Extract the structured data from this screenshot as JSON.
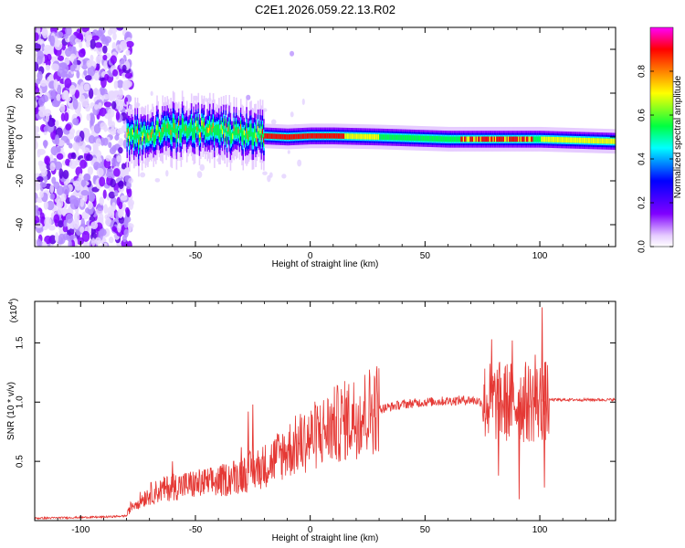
{
  "title": "C2E1.2026.059.22.13.R02",
  "colors": {
    "axis": "#000000",
    "snr_line": "#e53935",
    "colormap": [
      "#ffffff",
      "#d8c4ff",
      "#8000ff",
      "#0000ff",
      "#00ffff",
      "#00ff40",
      "#ffff00",
      "#ff8000",
      "#ff0000",
      "#ff00ff"
    ]
  },
  "chart_data": [
    {
      "type": "heatmap",
      "xlabel": "Height of straight line (km)",
      "ylabel": "Frequency (Hz)",
      "xlim": [
        -120,
        133
      ],
      "ylim": [
        -50,
        50
      ],
      "xticks": [
        -100,
        -50,
        0,
        50,
        100
      ],
      "yticks": [
        -40,
        -20,
        0,
        20,
        40
      ],
      "xtick_labels": [
        "-100",
        "-50",
        "0",
        "50",
        "100"
      ],
      "ytick_labels": [
        "-40",
        "-20",
        "0",
        "20",
        "40"
      ],
      "colorbar": {
        "label": "Normalized spectral amplitude",
        "range": [
          0,
          1
        ],
        "ticks": [
          0.0,
          0.2,
          0.4,
          0.6,
          0.8
        ],
        "tick_labels": [
          "0.0",
          "0.2",
          "0.4",
          "0.6",
          "0.8"
        ]
      },
      "band_center_hz": [
        [
          -120,
          0
        ],
        [
          -80,
          0
        ],
        [
          -70,
          1
        ],
        [
          -60,
          3
        ],
        [
          -50,
          4
        ],
        [
          -40,
          3
        ],
        [
          -30,
          2
        ],
        [
          -20,
          0.5
        ],
        [
          -10,
          0
        ],
        [
          0,
          0.5
        ],
        [
          10,
          0.5
        ],
        [
          30,
          0
        ],
        [
          60,
          -1
        ],
        [
          90,
          -1
        ],
        [
          100,
          -1
        ],
        [
          133,
          -2
        ]
      ]
    },
    {
      "type": "line",
      "xlabel": "Height of straight line (km)",
      "ylabel": "SNR (10 * v/v)",
      "yscale_label": "(x10",
      "yscale_exp": "4",
      "yscale_close": ")",
      "xlim": [
        -120,
        133
      ],
      "ylim": [
        0,
        1.85
      ],
      "xticks": [
        -100,
        -50,
        0,
        50,
        100
      ],
      "yticks": [
        0.5,
        1.0,
        1.5
      ],
      "xtick_labels": [
        "-100",
        "-50",
        "0",
        "50",
        "100"
      ],
      "ytick_labels": [
        "0.5",
        "1.0",
        "1.5"
      ],
      "series": [
        {
          "envelope": [
            [
              -120,
              0.02
            ],
            [
              -90,
              0.03
            ],
            [
              -80,
              0.04
            ],
            [
              -78,
              0.12
            ],
            [
              -70,
              0.22
            ],
            [
              -60,
              0.28
            ],
            [
              -50,
              0.3
            ],
            [
              -40,
              0.32
            ],
            [
              -30,
              0.38
            ],
            [
              -20,
              0.45
            ],
            [
              -10,
              0.58
            ],
            [
              0,
              0.68
            ],
            [
              10,
              0.78
            ],
            [
              20,
              0.86
            ],
            [
              30,
              0.94
            ],
            [
              40,
              0.98
            ],
            [
              50,
              1.0
            ],
            [
              60,
              1.01
            ],
            [
              70,
              1.02
            ],
            [
              75,
              1.0
            ],
            [
              80,
              1.0
            ],
            [
              90,
              1.0
            ],
            [
              95,
              1.0
            ],
            [
              100,
              1.0
            ],
            [
              105,
              1.02
            ],
            [
              133,
              1.02
            ]
          ],
          "spikes": [
            [
              -25,
              0.98
            ],
            [
              -27,
              0.92
            ],
            [
              -30,
              0.62
            ],
            [
              -60,
              0.5
            ],
            [
              79,
              1.53
            ],
            [
              82,
              0.38
            ],
            [
              88,
              1.52
            ],
            [
              91,
              0.18
            ],
            [
              101,
              1.8
            ],
            [
              102,
              0.28
            ],
            [
              98,
              1.4
            ]
          ]
        }
      ]
    }
  ]
}
